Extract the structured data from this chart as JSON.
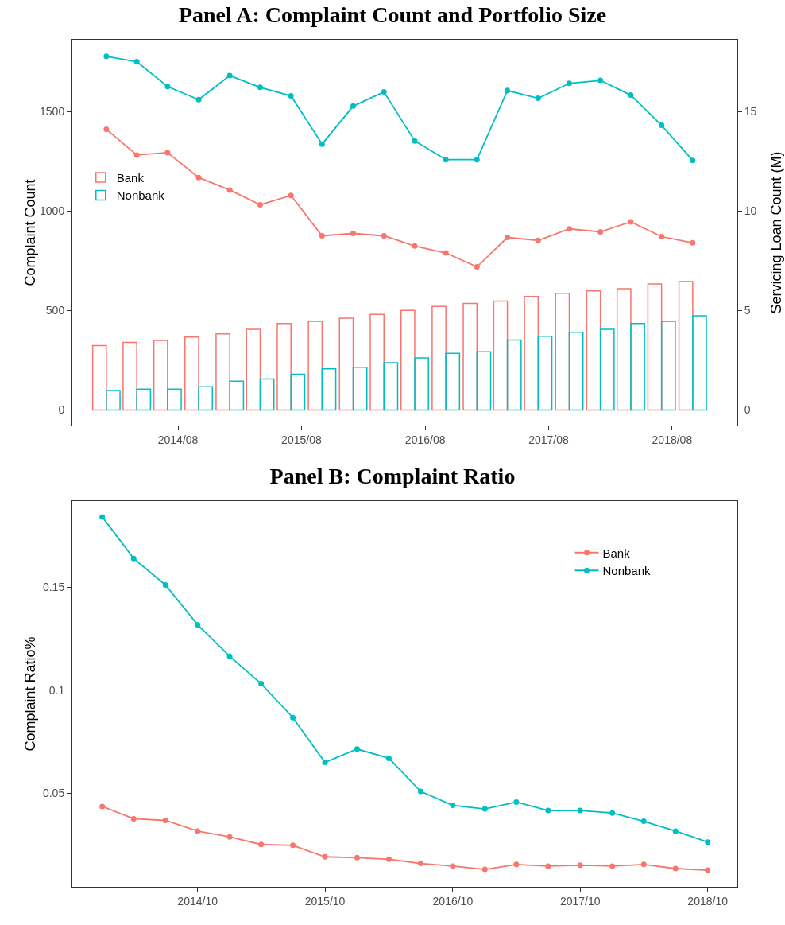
{
  "chart_data": [
    {
      "type": "line",
      "title": "Panel A: Complaint Count and Portfolio Size",
      "ylabel": "Complaint Count",
      "y2label": "Servicing Loan Count (M)",
      "x": [
        "2014-01",
        "2014-04",
        "2014-07",
        "2014-10",
        "2015-01",
        "2015-04",
        "2015-07",
        "2015-10",
        "2016-01",
        "2016-04",
        "2016-07",
        "2016-10",
        "2017-01",
        "2017-04",
        "2017-07",
        "2017-10",
        "2018-01",
        "2018-04",
        "2018-07",
        "2018-10"
      ],
      "series": [
        {
          "name": "Bank",
          "type": "bar",
          "axis": "y2",
          "color": "#f8766d",
          "values": [
            3.24,
            3.4,
            3.5,
            3.67,
            3.83,
            4.06,
            4.34,
            4.45,
            4.61,
            4.8,
            5.0,
            5.2,
            5.35,
            5.47,
            5.7,
            5.86,
            5.98,
            6.09,
            6.33,
            6.45
          ]
        },
        {
          "name": "Nonbank",
          "type": "bar",
          "axis": "y2",
          "color": "#00bfc4",
          "values": [
            0.98,
            1.05,
            1.05,
            1.17,
            1.45,
            1.56,
            1.8,
            2.07,
            2.15,
            2.38,
            2.62,
            2.85,
            2.93,
            3.52,
            3.71,
            3.91,
            4.06,
            4.34,
            4.45,
            4.73
          ]
        },
        {
          "color": "#f8766d",
          "values": [
            1410,
            1281,
            1293,
            1168,
            1105,
            1031,
            1078,
            875,
            887,
            875,
            824,
            789,
            719,
            867,
            852,
            910,
            895,
            945,
            871,
            840
          ]
        },
        {
          "color": "#00bfc4",
          "values": [
            1777,
            1750,
            1625,
            1559,
            1680,
            1621,
            1578,
            1336,
            1527,
            1598,
            1352,
            1258,
            1258,
            1605,
            1566,
            1641,
            1656,
            1582,
            1430,
            1254
          ]
        }
      ],
      "xlim": [
        "2013-09-20",
        "2019-02-10"
      ],
      "xticks": [
        {
          "value": "2014-08",
          "label": "2014/08"
        },
        {
          "value": "2015-08",
          "label": "2015/08"
        },
        {
          "value": "2016-08",
          "label": "2016/08"
        },
        {
          "value": "2017-08",
          "label": "2017/08"
        },
        {
          "value": "2018-08",
          "label": "2018/08"
        }
      ],
      "ylim": [
        -78,
        1860
      ],
      "yticks": [
        0,
        500,
        1000,
        1500
      ],
      "y2lim": [
        -0.78,
        18.6
      ],
      "y2ticks": [
        0,
        5,
        10,
        15
      ],
      "grid": false,
      "legend": "left",
      "marker": "circle"
    },
    {
      "type": "line",
      "title": "Panel B: Complaint Ratio",
      "ylabel": "Complaint Ratio%",
      "x": [
        "2014-01",
        "2014-04",
        "2014-07",
        "2014-10",
        "2015-01",
        "2015-04",
        "2015-07",
        "2015-10",
        "2016-01",
        "2016-04",
        "2016-07",
        "2016-10",
        "2017-01",
        "2017-04",
        "2017-07",
        "2017-10",
        "2018-01",
        "2018-04",
        "2018-07",
        "2018-10"
      ],
      "series": [
        {
          "name": "Bank",
          "color": "#f8766d",
          "values": [
            0.0435,
            0.0375,
            0.0367,
            0.0315,
            0.0287,
            0.025,
            0.0246,
            0.019,
            0.0186,
            0.0178,
            0.0158,
            0.0145,
            0.0129,
            0.0153,
            0.0145,
            0.0149,
            0.0145,
            0.0153,
            0.0133,
            0.0125
          ]
        },
        {
          "name": "Nonbank",
          "color": "#00bfc4",
          "values": [
            0.1843,
            0.1641,
            0.1512,
            0.1319,
            0.1165,
            0.1032,
            0.0867,
            0.0649,
            0.0714,
            0.0669,
            0.0508,
            0.044,
            0.0423,
            0.0456,
            0.0415,
            0.0415,
            0.0403,
            0.0363,
            0.0315,
            0.0262
          ]
        }
      ],
      "xlim": [
        "2013-10-05",
        "2018-12-25"
      ],
      "xticks": [
        {
          "value": "2014-10",
          "label": "2014/10"
        },
        {
          "value": "2015-10",
          "label": "2015/10"
        },
        {
          "value": "2016-10",
          "label": "2016/10"
        },
        {
          "value": "2017-10",
          "label": "2017/10"
        },
        {
          "value": "2018-10",
          "label": "2018/10"
        }
      ],
      "ylim": [
        0.0044,
        0.192
      ],
      "yticks": [
        0.05,
        0.1,
        0.15
      ],
      "grid": false,
      "legend": "top right",
      "marker": "circle"
    }
  ]
}
